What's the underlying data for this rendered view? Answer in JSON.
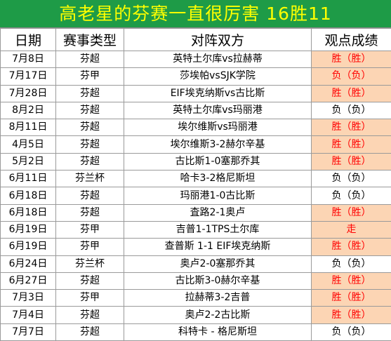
{
  "title": "高老星的芬赛一直很厉害 16胜11",
  "colors": {
    "title_bg": "#1e9b47",
    "title_text": "#ffff00",
    "win_bg": "#fcd5b4",
    "win_text": "#ff0000"
  },
  "headers": [
    "日期",
    "赛事类型",
    "对阵双方",
    "观点成绩"
  ],
  "rows": [
    {
      "date": "7月8日",
      "comp": "芬超",
      "match": "英特土尔库vs拉赫蒂",
      "result": "胜（胜）",
      "status": "win"
    },
    {
      "date": "7月17日",
      "comp": "芬甲",
      "match": "莎埃帕vsSJK学院",
      "result": "负（负）",
      "status": "win"
    },
    {
      "date": "7月28日",
      "comp": "芬超",
      "match": "EIF埃克纳斯vs古比斯",
      "result": "胜（胜）",
      "status": "win"
    },
    {
      "date": "8月2日",
      "comp": "芬超",
      "match": "英特土尔库vs玛丽港",
      "result": "负（负）",
      "status": "loss"
    },
    {
      "date": "8月11日",
      "comp": "芬超",
      "match": "埃尔维斯vs玛丽港",
      "result": "胜（胜）",
      "status": "win"
    },
    {
      "date": "4月5日",
      "comp": "芬超",
      "match": "埃尔维斯3-2赫尔辛基",
      "result": "胜（胜）",
      "status": "win"
    },
    {
      "date": "5月2日",
      "comp": "芬超",
      "match": "古比斯1-0塞那乔其",
      "result": "胜（胜）",
      "status": "win"
    },
    {
      "date": "6月11日",
      "comp": "芬兰杯",
      "match": "哈卡3-2格尼斯坦",
      "result": "负（负）",
      "status": "loss"
    },
    {
      "date": "6月18日",
      "comp": "芬超",
      "match": "玛丽港1-0古比斯",
      "result": "负（负）",
      "status": "loss"
    },
    {
      "date": "6月18日",
      "comp": "芬超",
      "match": "査路2-1奥卢",
      "result": "胜（胜）",
      "status": "win"
    },
    {
      "date": "6月19日",
      "comp": "芬甲",
      "match": "吉普1-1TPS土尔库",
      "result": "走",
      "status": "draw"
    },
    {
      "date": "6月19日",
      "comp": "芬甲",
      "match": "查普斯 1-1 EIF埃克纳斯",
      "result": "胜（胜）",
      "status": "win"
    },
    {
      "date": "6月24日",
      "comp": "芬兰杯",
      "match": "奥卢2-0塞那乔其",
      "result": "负（负）",
      "status": "loss"
    },
    {
      "date": "6月27日",
      "comp": "芬超",
      "match": "古比斯3-0赫尔辛基",
      "result": "胜（胜）",
      "status": "win"
    },
    {
      "date": "7月3日",
      "comp": "芬甲",
      "match": "拉赫蒂3-2吉普",
      "result": "胜（胜）",
      "status": "win"
    },
    {
      "date": "7月4日",
      "comp": "芬超",
      "match": "奥卢2-2古比斯",
      "result": "胜（胜）",
      "status": "win"
    },
    {
      "date": "7月7日",
      "comp": "芬超",
      "match": "科特卡 - 格尼斯坦",
      "result": "负（负）",
      "status": "loss"
    }
  ]
}
